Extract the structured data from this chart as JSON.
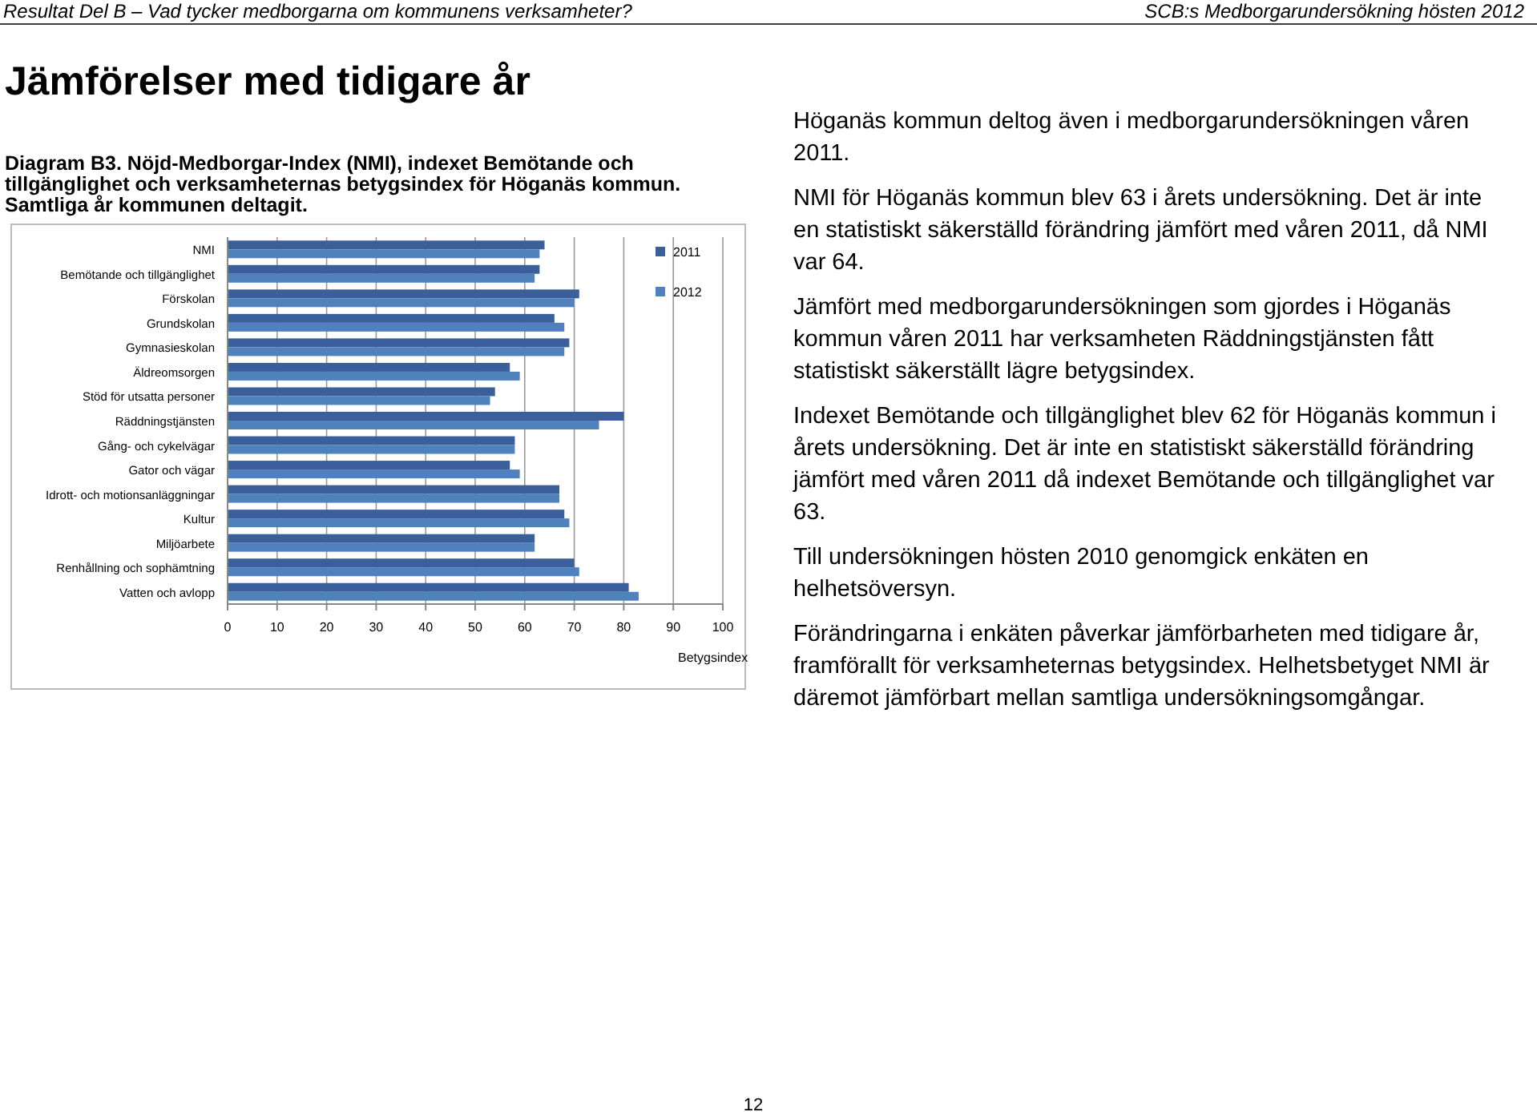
{
  "chart_data": {
    "type": "bar",
    "orientation": "horizontal",
    "title": "Diagram B3. Nöjd-Medborgar-Index (NMI), indexet Bemötande och tillgänglighet och verksamheternas betygsindex för Höganäs kommun. Samtliga år kommunen deltagit.",
    "xlabel": "Betygsindex",
    "categories": [
      "NMI",
      "Bemötande och tillgänglighet",
      "Förskolan",
      "Grundskolan",
      "Gymnasieskolan",
      "Äldreomsorgen",
      "Stöd för utsatta  personer",
      "Räddningstjänsten",
      "Gång- och cykelvägar",
      "Gator och vägar",
      "Idrott- och motionsanläggningar",
      "Kultur",
      "Miljöarbete",
      "Renhållning och sophämtning",
      "Vatten och avlopp"
    ],
    "series": [
      {
        "name": "2011",
        "color": "#3a5f9a",
        "values": [
          64,
          63,
          71,
          66,
          69,
          57,
          54,
          80,
          58,
          57,
          67,
          68,
          62,
          70,
          81
        ]
      },
      {
        "name": "2012",
        "color": "#4f81bd",
        "values": [
          63,
          62,
          70,
          68,
          68,
          59,
          53,
          75,
          58,
          59,
          67,
          69,
          62,
          71,
          83
        ]
      }
    ],
    "xlim": [
      0,
      100
    ],
    "xticks": [
      0,
      10,
      20,
      30,
      40,
      50,
      60,
      70,
      80,
      90,
      100
    ],
    "grid": "x",
    "legend": "top right",
    "annotations": [
      "Resultat Del B – Vad tycker medborgarna om kommunens verksamheter?",
      "SCB:s Medborgarundersökning hösten 2012",
      "Jämförelser med tidigare år",
      "Höganäs kommun deltog även i medborgarundersökningen våren 2011.",
      "NMI för Höganäs kommun blev 63 i årets undersökning. Det är inte en statistiskt säkerställd förändring jämfört med våren 2011, då NMI var 64.",
      "Jämfört med medborgarundersökningen som gjordes i Höganäs kommun våren 2011 har verksamheten Räddningstjänsten fått statistiskt säkerställt lägre betygsindex.",
      "Indexet Bemötande och tillgänglighet blev 62 för Höganäs kommun i årets undersökning. Det är inte en statistiskt säkerställd förändring jämfört med våren 2011 då indexet Bemötande och tillgänglighet var 63.",
      "Till undersökningen hösten 2010 genomgick enkäten en helhetsöversyn.",
      "Förändringarna i enkäten påverkar jämförbarheten med tidigare år, framförallt för verksamheternas betygsindex. Helhetsbetyget NMI är däremot jämförbart mellan samtliga undersökningsomgångar.",
      "12"
    ]
  }
}
